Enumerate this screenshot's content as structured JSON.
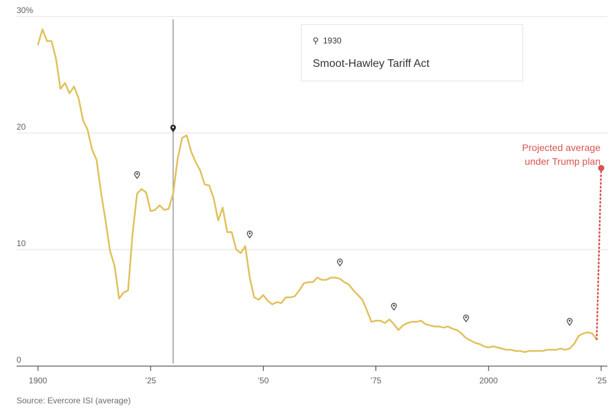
{
  "chart_data": {
    "type": "line",
    "title": "",
    "xlabel": "",
    "ylabel": "",
    "xlim": [
      1898,
      2026
    ],
    "ylim": [
      0,
      30
    ],
    "grid": true,
    "y_ticks": [
      {
        "value": 30,
        "label": "30%"
      },
      {
        "value": 20,
        "label": "20"
      },
      {
        "value": 10,
        "label": "10"
      },
      {
        "value": 0,
        "label": "0"
      }
    ],
    "x_ticks": [
      {
        "value": 1900,
        "label": "1900"
      },
      {
        "value": 1925,
        "label": "’25"
      },
      {
        "value": 1950,
        "label": "’50"
      },
      {
        "value": 1975,
        "label": "’75"
      },
      {
        "value": 2000,
        "label": "2000"
      },
      {
        "value": 2025,
        "label": "’25"
      }
    ],
    "series": [
      {
        "color": "#e1c15d",
        "x": [
          1900,
          1901,
          1902,
          1903,
          1904,
          1905,
          1906,
          1907,
          1908,
          1909,
          1910,
          1911,
          1912,
          1913,
          1914,
          1915,
          1916,
          1917,
          1918,
          1919,
          1920,
          1921,
          1922,
          1923,
          1924,
          1925,
          1926,
          1927,
          1928,
          1929,
          1930,
          1931,
          1932,
          1933,
          1934,
          1935,
          1936,
          1937,
          1938,
          1939,
          1940,
          1941,
          1942,
          1943,
          1944,
          1945,
          1946,
          1947,
          1948,
          1949,
          1950,
          1951,
          1952,
          1953,
          1954,
          1955,
          1956,
          1957,
          1958,
          1959,
          1960,
          1961,
          1962,
          1963,
          1964,
          1965,
          1966,
          1967,
          1968,
          1969,
          1970,
          1971,
          1972,
          1973,
          1974,
          1975,
          1976,
          1977,
          1978,
          1979,
          1980,
          1981,
          1982,
          1983,
          1984,
          1985,
          1986,
          1987,
          1988,
          1989,
          1990,
          1991,
          1992,
          1993,
          1994,
          1995,
          1996,
          1997,
          1998,
          1999,
          2000,
          2001,
          2002,
          2003,
          2004,
          2005,
          2006,
          2007,
          2008,
          2009,
          2010,
          2011,
          2012,
          2013,
          2014,
          2015,
          2016,
          2017,
          2018,
          2019,
          2020,
          2021,
          2022,
          2023,
          2024
        ],
        "y": [
          27.6,
          28.9,
          27.9,
          27.9,
          26.4,
          23.8,
          24.3,
          23.4,
          24.0,
          23.0,
          21.1,
          20.3,
          18.6,
          17.7,
          14.9,
          12.5,
          9.9,
          8.6,
          5.8,
          6.3,
          6.5,
          11.4,
          14.8,
          15.2,
          14.9,
          13.3,
          13.4,
          13.8,
          13.4,
          13.5,
          14.8,
          17.8,
          19.6,
          19.8,
          18.4,
          17.5,
          16.8,
          15.6,
          15.5,
          14.4,
          12.5,
          13.6,
          11.5,
          11.5,
          10.0,
          9.7,
          10.3,
          7.6,
          5.9,
          5.7,
          6.1,
          5.6,
          5.3,
          5.5,
          5.4,
          5.9,
          5.9,
          6.0,
          6.5,
          7.1,
          7.2,
          7.2,
          7.6,
          7.4,
          7.4,
          7.6,
          7.6,
          7.5,
          7.2,
          7.0,
          6.5,
          6.1,
          5.7,
          4.8,
          3.8,
          3.9,
          3.9,
          3.7,
          4.0,
          3.6,
          3.1,
          3.5,
          3.7,
          3.8,
          3.8,
          3.9,
          3.6,
          3.5,
          3.4,
          3.4,
          3.3,
          3.4,
          3.2,
          3.1,
          2.8,
          2.4,
          2.2,
          2.0,
          1.9,
          1.7,
          1.6,
          1.7,
          1.6,
          1.5,
          1.4,
          1.4,
          1.3,
          1.3,
          1.2,
          1.3,
          1.3,
          1.3,
          1.3,
          1.4,
          1.4,
          1.4,
          1.5,
          1.4,
          1.5,
          1.9,
          2.6,
          2.8,
          2.9,
          2.8,
          2.3
        ]
      }
    ],
    "projection": {
      "from": {
        "x": 2024,
        "y": 2.3
      },
      "to": {
        "x": 2025,
        "y": 17.0
      },
      "color": "#d9534f",
      "label_lines": [
        "Projected average",
        "under Trump plan"
      ]
    },
    "event_markers": [
      {
        "x": 1922,
        "y": 16.4,
        "selected": false
      },
      {
        "x": 1930,
        "y": 20.4,
        "selected": true
      },
      {
        "x": 1947,
        "y": 11.3,
        "selected": false
      },
      {
        "x": 1967,
        "y": 8.9,
        "selected": false
      },
      {
        "x": 1979,
        "y": 5.1,
        "selected": false
      },
      {
        "x": 1995,
        "y": 4.1,
        "selected": false
      },
      {
        "x": 2018,
        "y": 3.8,
        "selected": false
      }
    ],
    "tooltip": {
      "year": "1930",
      "event": "Smoot-Hawley Tariff Act"
    },
    "source": "Source: Evercore ISI (average)"
  }
}
